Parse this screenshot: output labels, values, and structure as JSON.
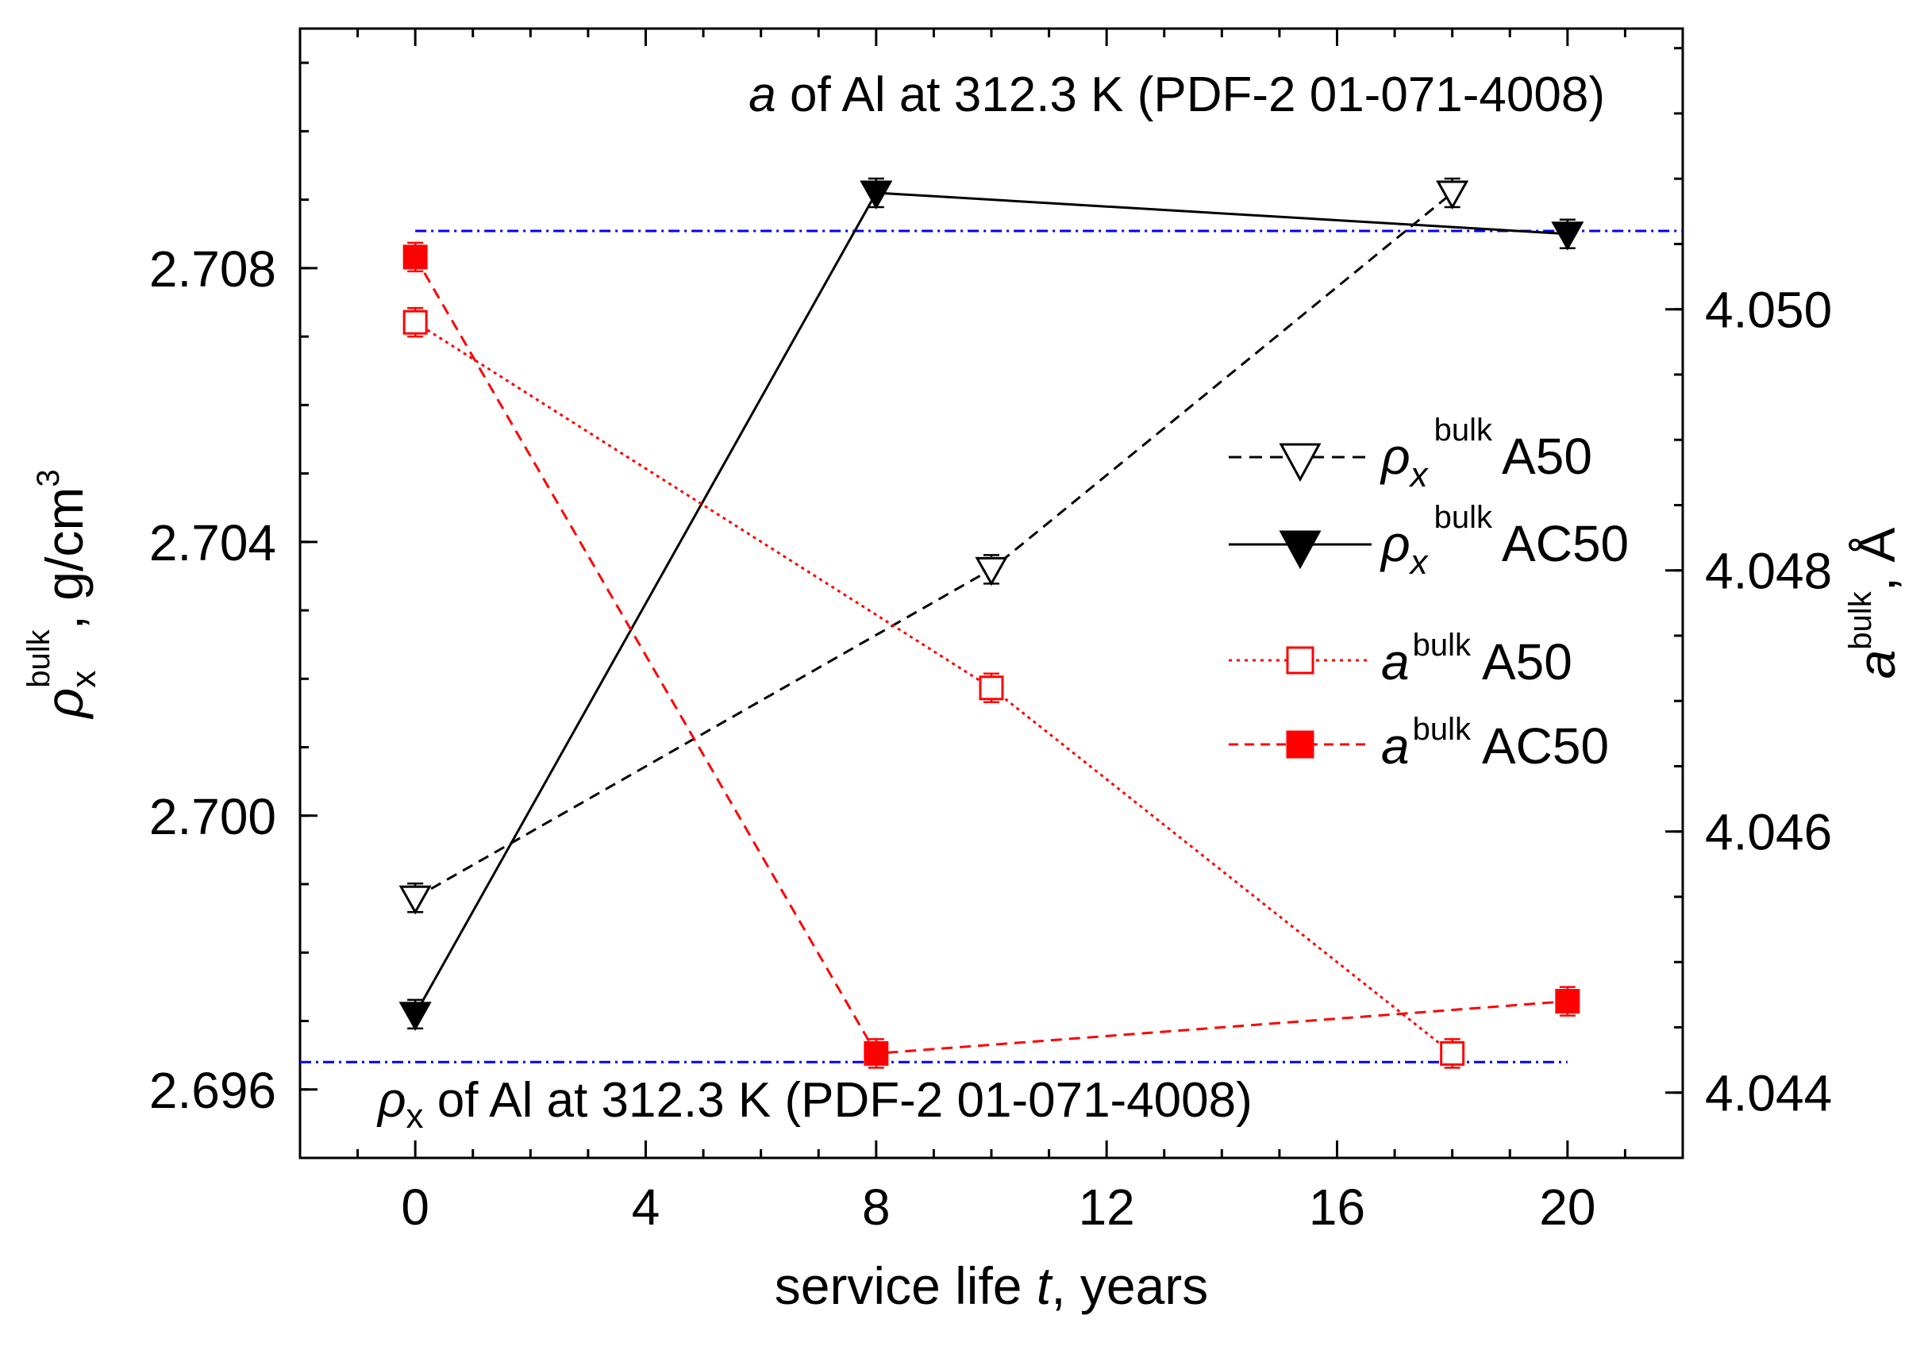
{
  "chart_data": {
    "type": "line",
    "x": {
      "label_prefix": "service life ",
      "label_var": "t",
      "label_suffix": ", years",
      "range": [
        -2,
        22
      ],
      "ticks": [
        "0",
        "4",
        "8",
        "12",
        "16",
        "20"
      ],
      "tick_values": [
        0,
        4,
        8,
        12,
        16,
        20
      ]
    },
    "y_left": {
      "label_symbol": "ρ",
      "label_sup": "bulk",
      "label_sub": "x",
      "label_unit": ", g/cm",
      "label_unit_sup": "3",
      "range": [
        2.695,
        2.7115
      ],
      "ticks": [
        "2.696",
        "2.700",
        "2.704",
        "2.708"
      ],
      "tick_values": [
        2.696,
        2.7,
        2.704,
        2.708
      ]
    },
    "y_right": {
      "label_symbol": "a",
      "label_sup": "bulk",
      "label_unit": ", Å",
      "range": [
        4.0435,
        4.05215
      ],
      "ticks": [
        "4.044",
        "4.046",
        "4.048",
        "4.050"
      ],
      "tick_values": [
        4.044,
        4.046,
        4.048,
        4.05
      ]
    },
    "series": [
      {
        "name": "A50",
        "symbol": "ρ",
        "sub": "x",
        "sup": "bulk",
        "axis": "left",
        "marker": "triangle-down-open",
        "line": "dash",
        "color": "#000000",
        "x": [
          0,
          10,
          18
        ],
        "y": [
          2.6988,
          2.7036,
          2.7091
        ]
      },
      {
        "name": "AC50",
        "symbol": "ρ",
        "sub": "x",
        "sup": "bulk",
        "axis": "left",
        "marker": "triangle-down-filled",
        "line": "solid",
        "color": "#000000",
        "x": [
          0,
          8,
          20
        ],
        "y": [
          2.6971,
          2.7091,
          2.7085
        ]
      },
      {
        "name": "A50",
        "symbol": "a",
        "sub": "",
        "sup": "bulk",
        "axis": "right",
        "marker": "square-open",
        "line": "dot",
        "color": "#ff0000",
        "x": [
          0,
          10,
          18
        ],
        "y": [
          4.0499,
          4.0471,
          4.0443
        ]
      },
      {
        "name": "AC50",
        "symbol": "a",
        "sub": "",
        "sup": "bulk",
        "axis": "right",
        "marker": "square-filled",
        "line": "dash",
        "color": "#ff0000",
        "x": [
          0,
          8,
          20
        ],
        "y": [
          4.0504,
          4.0443,
          4.0447
        ]
      }
    ],
    "reference_lines": [
      {
        "axis": "right",
        "value": 4.0506,
        "x_from": 0,
        "x_to": 22,
        "color": "#0000ff",
        "style": "dashdot"
      },
      {
        "axis": "left",
        "value": 2.6964,
        "x_from": -2,
        "x_to": 20,
        "color": "#0000ff",
        "style": "dashdot"
      }
    ],
    "annotations": {
      "top": {
        "italic": "a",
        "text": " of Al at 312.3 K (PDF-2 01-071-4008)"
      },
      "bottom": {
        "symbol": "ρ",
        "sub": "x",
        "text": " of Al at 312.3 K (PDF-2 01-071-4008)"
      }
    },
    "legend_position": "right-center"
  }
}
